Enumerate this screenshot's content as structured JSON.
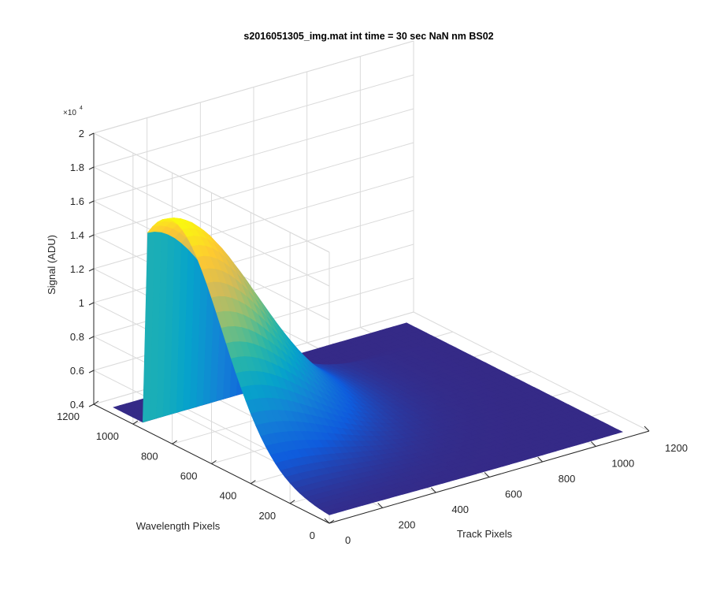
{
  "chart_data": {
    "type": "surface",
    "title": "s2016051305_img.mat int time = 30 sec  NaN nm BS02",
    "xlabel": "Track Pixels",
    "ylabel": "Wavelength Pixels",
    "zlabel": "Signal (ADU)",
    "exponent_label": "×10",
    "exponent_power": "4",
    "x_ticks": [
      "0",
      "200",
      "400",
      "600",
      "800",
      "1000",
      "1200"
    ],
    "y_ticks": [
      "0",
      "200",
      "400",
      "600",
      "800",
      "1000",
      "1200"
    ],
    "z_ticks": [
      "0.4",
      "0.6",
      "0.8",
      "1",
      "1.2",
      "1.4",
      "1.6",
      "1.8",
      "2"
    ],
    "xlim": [
      0,
      1200
    ],
    "ylim": [
      0,
      1200
    ],
    "zlim": [
      4000,
      20000
    ],
    "x_extent": [
      0,
      1100
    ],
    "y_extent": [
      0,
      1100
    ],
    "baseline_signal": 4400,
    "peak_signal": 17200,
    "peak_track_pixel": 0,
    "peak_wavelength_pixel": 800,
    "grid": true,
    "colormap": "parula",
    "colors": [
      "#352a87",
      "#0f5cdd",
      "#1481d6",
      "#06a4ca",
      "#2eb7a4",
      "#87bf77",
      "#d1bb59",
      "#fec832",
      "#f9fb0e"
    ]
  }
}
